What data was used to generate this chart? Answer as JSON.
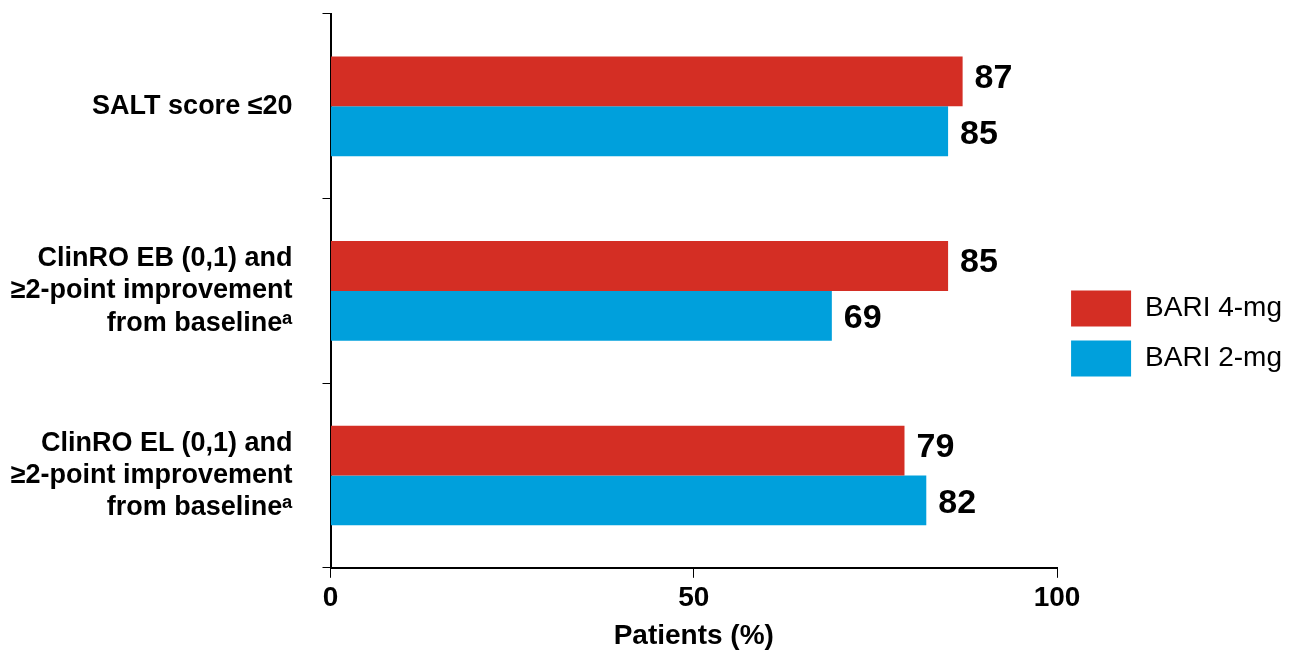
{
  "chart_data": {
    "type": "bar",
    "orientation": "horizontal",
    "xlabel": "Patients (%)",
    "categories": [
      "SALT score ≤20",
      "ClinRO EB (0,1) and ≥2-point improvement from baselineᵃ",
      "ClinRO EL (0,1) and ≥2-point improvement from baselineᵃ"
    ],
    "series": [
      {
        "name": "BARI 4-mg",
        "color": "#d42e24",
        "values": [
          87,
          85,
          79
        ]
      },
      {
        "name": "BARI 2-mg",
        "color": "#00a0dc",
        "values": [
          85,
          69,
          82
        ]
      }
    ],
    "xlim": [
      0,
      100
    ],
    "xticks": [
      0,
      50,
      100
    ],
    "grid": false,
    "legend": "right",
    "data_labels": true
  }
}
